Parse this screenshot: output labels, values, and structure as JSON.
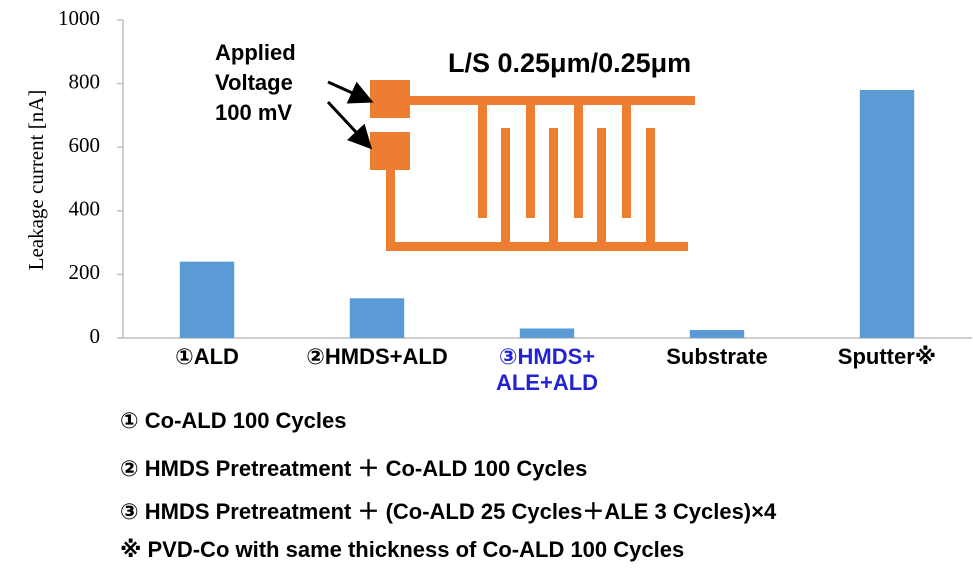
{
  "chart_data": {
    "type": "bar",
    "ylabel": "Leakage current [nA]",
    "categories": [
      "①ALD",
      "②HMDS+ALD",
      "③HMDS+\nALE+ALD",
      "Substrate",
      "Sputter※"
    ],
    "category_label_colors": [
      "#000000",
      "#000000",
      "#2323d6",
      "#000000",
      "#000000"
    ],
    "values": [
      240,
      125,
      30,
      25,
      780
    ],
    "color": "#5b9bd5",
    "ylim": [
      0,
      1000
    ],
    "yticks": [
      0,
      200,
      400,
      600,
      800,
      1000
    ],
    "grid": false,
    "annotations": [
      "Applied\nVoltage\n100 mV",
      "L/S 0.25μm/0.25μm"
    ],
    "footnotes": [
      "① Co-ALD 100 Cycles",
      "② HMDS Pretreatment ＋ Co-ALD 100 Cycles",
      "③ HMDS Pretreatment ＋ (Co-ALD 25 Cycles＋ALE 3 Cycles)×4",
      "※ PVD-Co with same thickness of Co-ALD 100 Cycles"
    ]
  }
}
